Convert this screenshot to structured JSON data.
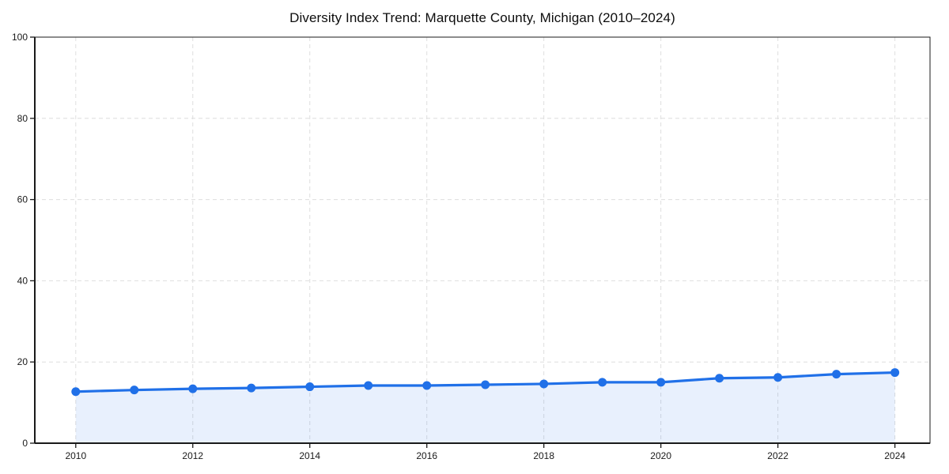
{
  "page": {
    "background": "#ffffff"
  },
  "chart_data": {
    "type": "area",
    "title": "Diversity Index Trend: Marquette County, Michigan (2010–2024)",
    "series_name": "Diversity Index",
    "x": [
      2010,
      2011,
      2012,
      2013,
      2014,
      2015,
      2016,
      2017,
      2018,
      2019,
      2020,
      2021,
      2022,
      2023,
      2024
    ],
    "values": [
      12.7,
      13.1,
      13.4,
      13.6,
      13.9,
      14.2,
      14.2,
      14.4,
      14.6,
      15.0,
      15.0,
      16.0,
      16.2,
      17.0,
      17.4
    ],
    "xlabel": "",
    "ylabel": "",
    "ylim": [
      0,
      100
    ],
    "xlim": [
      2009.3,
      2024.6
    ],
    "yticks": [
      0,
      20,
      40,
      60,
      80,
      100
    ],
    "xticks": [
      2010,
      2012,
      2014,
      2016,
      2018,
      2020,
      2022,
      2024
    ],
    "grid": true,
    "grid_style": "dashed",
    "legend": false,
    "colors": {
      "line": "#2070e8",
      "marker": "#2070e8",
      "fill": "rgba(32,112,232,0.10)",
      "grid": "#dedede",
      "spine": "#1a1a1a",
      "tick_label": "#1a1a1a",
      "title": "#0d0d0d"
    }
  }
}
